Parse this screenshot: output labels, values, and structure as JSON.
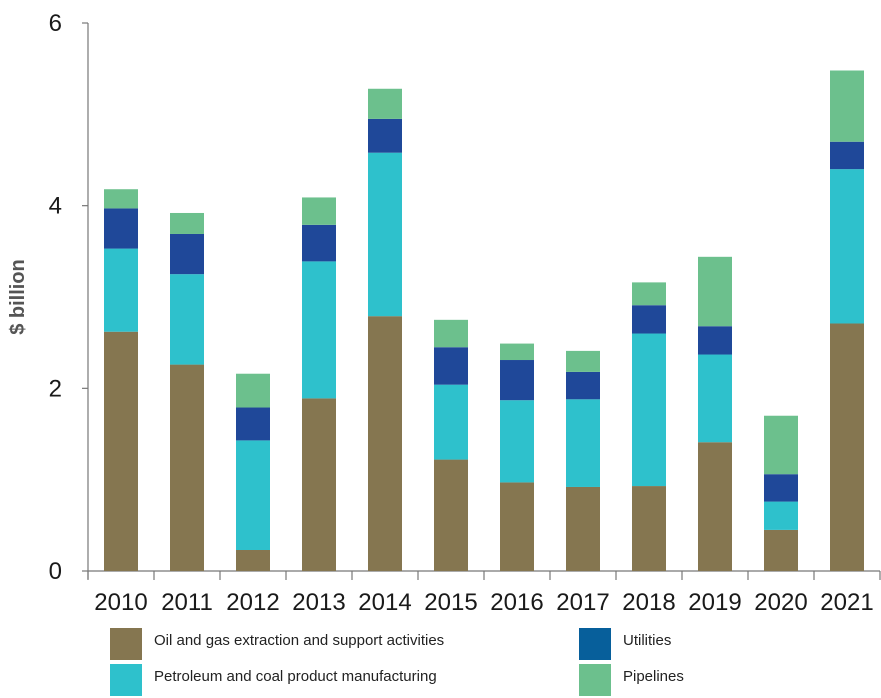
{
  "chart_data": {
    "type": "bar",
    "stacked": true,
    "title": "",
    "xlabel": "",
    "ylabel": "$ billion",
    "ylim": [
      0,
      6
    ],
    "yticks": [
      "0",
      "2",
      "4",
      "6"
    ],
    "grid": false,
    "legend_position": "bottom",
    "categories": [
      "2010",
      "2011",
      "2012",
      "2013",
      "2014",
      "2015",
      "2016",
      "2017",
      "2018",
      "2019",
      "2020",
      "2021"
    ],
    "series": [
      {
        "name": "Oil and gas extraction and support activities",
        "color": "#857650",
        "values": [
          2.62,
          2.26,
          0.23,
          1.89,
          2.79,
          1.22,
          0.97,
          0.92,
          0.93,
          1.41,
          0.45,
          2.71
        ]
      },
      {
        "name": "Petroleum and coal product manufacturing",
        "color": "#2ec1cc",
        "values": [
          0.91,
          0.99,
          1.2,
          1.5,
          1.79,
          0.82,
          0.9,
          0.96,
          1.67,
          0.96,
          0.31,
          1.69
        ]
      },
      {
        "name": "Utilities",
        "color": "#1f4899",
        "values": [
          0.44,
          0.44,
          0.36,
          0.4,
          0.37,
          0.41,
          0.44,
          0.3,
          0.31,
          0.31,
          0.3,
          0.3
        ]
      },
      {
        "name": "Pipelines",
        "color": "#6cc08d",
        "values": [
          0.21,
          0.23,
          0.37,
          0.3,
          0.33,
          0.3,
          0.18,
          0.23,
          0.25,
          0.76,
          0.64,
          0.78
        ]
      }
    ],
    "legend_swatch_colors": [
      "#857650",
      "#2ec1cc",
      "#075f9b",
      "#6cc08d"
    ]
  }
}
